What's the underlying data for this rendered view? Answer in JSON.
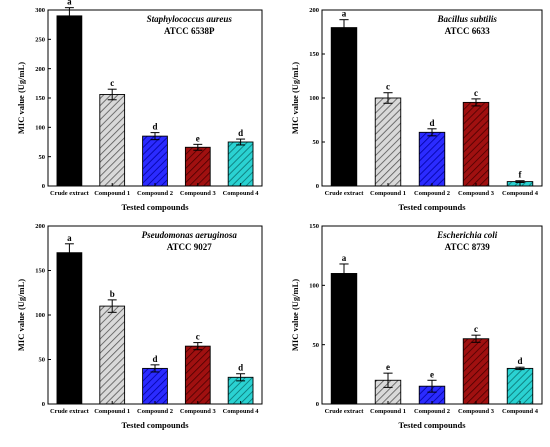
{
  "chart_data": [
    {
      "type": "bar",
      "title": "Staphylococcus aureus",
      "subtitle": "ATCC 6538P",
      "xlabel": "Tested compounds",
      "ylabel": "MIC value (Ug/mL)",
      "ylim": [
        0,
        300
      ],
      "yticks": [
        0,
        50,
        100,
        150,
        200,
        250,
        300
      ],
      "categories": [
        "Crude extract",
        "Compound 1",
        "Compound 2",
        "Compound 3",
        "Compound 4"
      ],
      "values": [
        290,
        156,
        85,
        66,
        75
      ],
      "errors": [
        14,
        9,
        6,
        5,
        5
      ],
      "letters": [
        "a",
        "c",
        "d",
        "e",
        "d"
      ]
    },
    {
      "type": "bar",
      "title": "Bacillus subtilis",
      "subtitle": "ATCC 6633",
      "xlabel": "Tested compounds",
      "ylabel": "MIC value (Ug/mL)",
      "ylim": [
        0,
        200
      ],
      "yticks": [
        0,
        50,
        100,
        150,
        200
      ],
      "categories": [
        "Crude extract",
        "Compound 1",
        "Compound 2",
        "Compound 3",
        "Compound 4"
      ],
      "values": [
        180,
        100,
        61,
        95,
        5
      ],
      "errors": [
        9,
        6,
        4,
        4,
        1
      ],
      "letters": [
        "a",
        "c",
        "d",
        "c",
        "f"
      ]
    },
    {
      "type": "bar",
      "title": "Pseudomonas aeruginosa",
      "subtitle": "ATCC 9027",
      "xlabel": "Tested compounds",
      "ylabel": "MIC value (Ug/mL)",
      "ylim": [
        0,
        200
      ],
      "yticks": [
        0,
        50,
        100,
        150,
        200
      ],
      "categories": [
        "Crude extract",
        "Compound 1",
        "Compound 2",
        "Compound 3",
        "Compound 4"
      ],
      "values": [
        170,
        110,
        40,
        65,
        30
      ],
      "errors": [
        10,
        7,
        4,
        4,
        4
      ],
      "letters": [
        "a",
        "b",
        "d",
        "c",
        "d"
      ]
    },
    {
      "type": "bar",
      "title": "Escherichia coli",
      "subtitle": "ATCC 8739",
      "xlabel": "Tested compounds",
      "ylabel": "MIC value (Ug/mL)",
      "ylim": [
        0,
        150
      ],
      "yticks": [
        0,
        50,
        100,
        150
      ],
      "categories": [
        "Crude extract",
        "Compound 1",
        "Compound 2",
        "Compound 3",
        "Compound 4"
      ],
      "values": [
        110,
        20,
        15,
        55,
        30
      ],
      "errors": [
        8,
        6,
        5,
        3,
        1
      ],
      "letters": [
        "a",
        "e",
        "e",
        "c",
        "d"
      ]
    }
  ],
  "style": {
    "bar_fills": [
      "#000000",
      "#cfcfcf",
      "#1a1aff",
      "#8b0000",
      "#20c9c9"
    ],
    "bar_hatched": [
      false,
      true,
      true,
      true,
      true
    ]
  }
}
